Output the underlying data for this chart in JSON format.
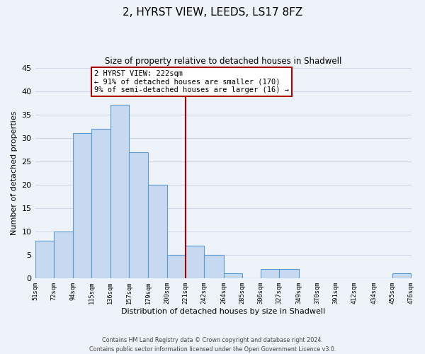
{
  "title": "2, HYRST VIEW, LEEDS, LS17 8FZ",
  "subtitle": "Size of property relative to detached houses in Shadwell",
  "xlabel": "Distribution of detached houses by size in Shadwell",
  "ylabel": "Number of detached properties",
  "bar_color": "#c6d9f0",
  "bar_edge_color": "#5b9bd5",
  "bins": [
    51,
    72,
    94,
    115,
    136,
    157,
    179,
    200,
    221,
    242,
    264,
    285,
    306,
    327,
    349,
    370,
    391,
    412,
    434,
    455,
    476
  ],
  "counts": [
    8,
    10,
    31,
    32,
    37,
    27,
    20,
    5,
    7,
    5,
    1,
    0,
    2,
    2,
    0,
    0,
    0,
    0,
    0,
    1
  ],
  "tick_labels": [
    "51sqm",
    "72sqm",
    "94sqm",
    "115sqm",
    "136sqm",
    "157sqm",
    "179sqm",
    "200sqm",
    "221sqm",
    "242sqm",
    "264sqm",
    "285sqm",
    "306sqm",
    "327sqm",
    "349sqm",
    "370sqm",
    "391sqm",
    "412sqm",
    "434sqm",
    "455sqm",
    "476sqm"
  ],
  "ylim": [
    0,
    45
  ],
  "yticks": [
    0,
    5,
    10,
    15,
    20,
    25,
    30,
    35,
    40,
    45
  ],
  "property_line_x": 221,
  "vline_color": "#aa0000",
  "annotation_title": "2 HYRST VIEW: 222sqm",
  "annotation_line1": "← 91% of detached houses are smaller (170)",
  "annotation_line2": "9% of semi-detached houses are larger (16) →",
  "annotation_box_color": "#ffffff",
  "annotation_border_color": "#aa0000",
  "background_color": "#eef3fa",
  "grid_color": "#d0d8e8",
  "footer_line1": "Contains HM Land Registry data © Crown copyright and database right 2024.",
  "footer_line2": "Contains public sector information licensed under the Open Government Licence v3.0."
}
